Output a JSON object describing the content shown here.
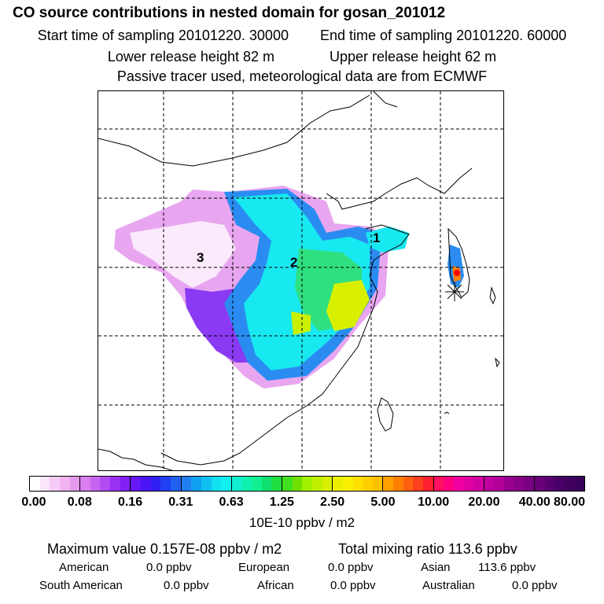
{
  "title": "CO  source contributions in nested domain for gosan_201012",
  "start_time": "Start time of sampling 20101220. 30000",
  "end_time": "End time of sampling 20101220. 60000",
  "lower_height": "Lower release height   82 m",
  "upper_height": "Upper release height   62 m",
  "tracer_note": "Passive tracer used, meteorological data are from ECMWF",
  "map_labels": {
    "label_1": "1",
    "label_2": "2",
    "label_3": "3"
  },
  "colorbar": {
    "ticks": [
      "0.00",
      "0.08",
      "0.16",
      "0.31",
      "0.63",
      "1.25",
      "2.50",
      "5.00",
      "10.00",
      "20.00",
      "40.00",
      "80.00"
    ],
    "colors": [
      "#ffffff",
      "#fbe6fb",
      "#f5ccf5",
      "#efb3ef",
      "#e699ee",
      "#d97ff0",
      "#c765f0",
      "#b24bf2",
      "#9a30f2",
      "#8020f4",
      "#6518f5",
      "#4a14f5",
      "#3020f4",
      "#2040f2",
      "#2060f0",
      "#2080f0",
      "#10a0f0",
      "#10c0f0",
      "#10e0f0",
      "#10f0f0",
      "#10f0d0",
      "#10f0b0",
      "#10f090",
      "#10e070",
      "#20e040",
      "#40e020",
      "#70e000",
      "#a0f000",
      "#c0f000",
      "#d8f000",
      "#ecf000",
      "#f8f000",
      "#ffe000",
      "#ffd000",
      "#ffc000",
      "#ffa000",
      "#ff8000",
      "#ff6010",
      "#ff4020",
      "#ff2030",
      "#ff1060",
      "#ff0080",
      "#f000a0",
      "#e000a0",
      "#d000a0",
      "#c000a0",
      "#b00098",
      "#980090",
      "#880088",
      "#780080",
      "#680078",
      "#580070",
      "#480068",
      "#400060",
      "#380058"
    ],
    "units": "10E-10 ppbv / m2"
  },
  "stats": {
    "max_value": "Maximum value  0.157E-08 ppbv / m2",
    "total_mixing": "Total mixing ratio      113.6 ppbv",
    "american": "American",
    "american_val": "0.0 ppbv",
    "european": "European",
    "european_val": "0.0 ppbv",
    "asian": "Asian",
    "asian_val": "113.6 ppbv",
    "south_american": "South American",
    "south_american_val": "0.0 ppbv",
    "african": "African",
    "african_val": "0.0 ppbv",
    "australian": "Australian",
    "australian_val": "0.0 ppbv"
  }
}
